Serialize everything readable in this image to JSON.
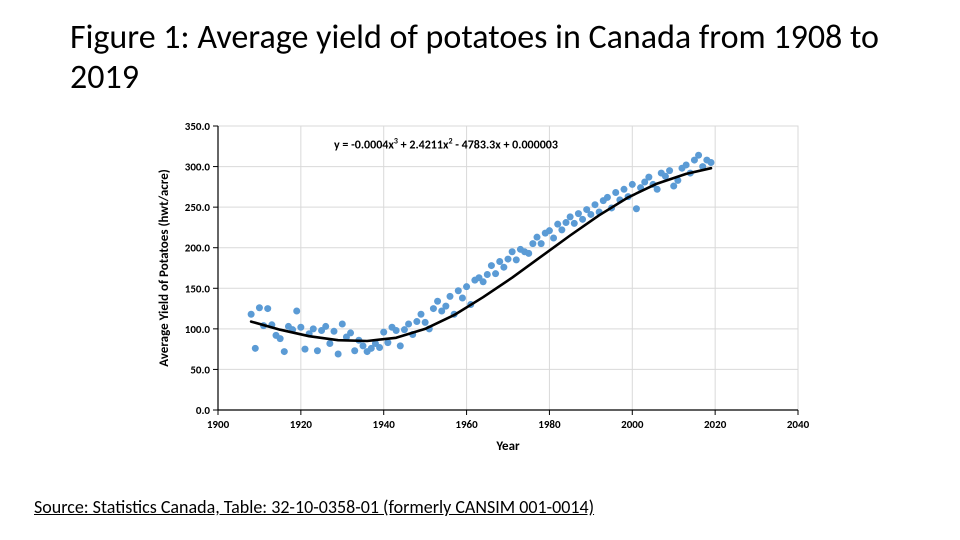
{
  "title": "Figure 1: Average yield of potatoes in Canada from 1908 to 2019",
  "source": "Source: Statistics Canada, Table: 32-10-0358-01 (formerly CANSIM 001-0014)",
  "chart": {
    "type": "scatter",
    "equation_prefix": "y = -0.0004x",
    "equation_mid1": " + 2.4211x",
    "equation_mid2": " - 4783.3x + 0.000003",
    "xlabel": "Year",
    "ylabel": "Average Yield of Potatoes (hwt/acre)",
    "xlim": [
      1900,
      2040
    ],
    "ylim": [
      0,
      350
    ],
    "xticks": [
      1900,
      1920,
      1940,
      1960,
      1980,
      2000,
      2020,
      2040
    ],
    "yticks": [
      0.0,
      50.0,
      100.0,
      150.0,
      200.0,
      250.0,
      300.0,
      350.0
    ],
    "ytick_labels": [
      "0.0",
      "50.0",
      "100.0",
      "150.0",
      "200.0",
      "250.0",
      "300.0",
      "350.0"
    ],
    "background_color": "#ffffff",
    "grid_color": "#d9d9d9",
    "axis_color": "#000000",
    "marker_color": "#5b9bd5",
    "marker_radius": 3.5,
    "trend_color": "#000000",
    "trend_width": 2.6,
    "label_fontsize": 13,
    "tick_fontsize": 11,
    "equation_fontsize": 12,
    "ytick_decimal": 1,
    "trend_coeffs": {
      "a": -0.0004,
      "b": 2.4211,
      "c": -4783.3,
      "d": 3e-06
    },
    "points": [
      {
        "x": 1908,
        "y": 118
      },
      {
        "x": 1909,
        "y": 76
      },
      {
        "x": 1910,
        "y": 126
      },
      {
        "x": 1911,
        "y": 104
      },
      {
        "x": 1912,
        "y": 125
      },
      {
        "x": 1913,
        "y": 105
      },
      {
        "x": 1914,
        "y": 92
      },
      {
        "x": 1915,
        "y": 88
      },
      {
        "x": 1916,
        "y": 72
      },
      {
        "x": 1917,
        "y": 103
      },
      {
        "x": 1918,
        "y": 99
      },
      {
        "x": 1919,
        "y": 122
      },
      {
        "x": 1920,
        "y": 102
      },
      {
        "x": 1921,
        "y": 75
      },
      {
        "x": 1922,
        "y": 94
      },
      {
        "x": 1923,
        "y": 100
      },
      {
        "x": 1924,
        "y": 73
      },
      {
        "x": 1925,
        "y": 98
      },
      {
        "x": 1926,
        "y": 103
      },
      {
        "x": 1927,
        "y": 82
      },
      {
        "x": 1928,
        "y": 97
      },
      {
        "x": 1929,
        "y": 69
      },
      {
        "x": 1930,
        "y": 106
      },
      {
        "x": 1931,
        "y": 90
      },
      {
        "x": 1932,
        "y": 95
      },
      {
        "x": 1933,
        "y": 73
      },
      {
        "x": 1934,
        "y": 86
      },
      {
        "x": 1935,
        "y": 79
      },
      {
        "x": 1936,
        "y": 72
      },
      {
        "x": 1937,
        "y": 76
      },
      {
        "x": 1938,
        "y": 82
      },
      {
        "x": 1939,
        "y": 77
      },
      {
        "x": 1940,
        "y": 96
      },
      {
        "x": 1941,
        "y": 83
      },
      {
        "x": 1942,
        "y": 102
      },
      {
        "x": 1943,
        "y": 98
      },
      {
        "x": 1944,
        "y": 79
      },
      {
        "x": 1945,
        "y": 99
      },
      {
        "x": 1946,
        "y": 106
      },
      {
        "x": 1947,
        "y": 93
      },
      {
        "x": 1948,
        "y": 109
      },
      {
        "x": 1949,
        "y": 118
      },
      {
        "x": 1950,
        "y": 108
      },
      {
        "x": 1951,
        "y": 100
      },
      {
        "x": 1952,
        "y": 125
      },
      {
        "x": 1953,
        "y": 134
      },
      {
        "x": 1954,
        "y": 122
      },
      {
        "x": 1955,
        "y": 128
      },
      {
        "x": 1956,
        "y": 140
      },
      {
        "x": 1957,
        "y": 118
      },
      {
        "x": 1958,
        "y": 147
      },
      {
        "x": 1959,
        "y": 138
      },
      {
        "x": 1960,
        "y": 152
      },
      {
        "x": 1961,
        "y": 130
      },
      {
        "x": 1962,
        "y": 160
      },
      {
        "x": 1963,
        "y": 163
      },
      {
        "x": 1964,
        "y": 158
      },
      {
        "x": 1965,
        "y": 167
      },
      {
        "x": 1966,
        "y": 178
      },
      {
        "x": 1967,
        "y": 168
      },
      {
        "x": 1968,
        "y": 183
      },
      {
        "x": 1969,
        "y": 176
      },
      {
        "x": 1970,
        "y": 186
      },
      {
        "x": 1971,
        "y": 195
      },
      {
        "x": 1972,
        "y": 185
      },
      {
        "x": 1973,
        "y": 198
      },
      {
        "x": 1974,
        "y": 195
      },
      {
        "x": 1975,
        "y": 193
      },
      {
        "x": 1976,
        "y": 205
      },
      {
        "x": 1977,
        "y": 213
      },
      {
        "x": 1978,
        "y": 205
      },
      {
        "x": 1979,
        "y": 218
      },
      {
        "x": 1980,
        "y": 221
      },
      {
        "x": 1981,
        "y": 212
      },
      {
        "x": 1982,
        "y": 229
      },
      {
        "x": 1983,
        "y": 222
      },
      {
        "x": 1984,
        "y": 231
      },
      {
        "x": 1985,
        "y": 238
      },
      {
        "x": 1986,
        "y": 230
      },
      {
        "x": 1987,
        "y": 242
      },
      {
        "x": 1988,
        "y": 235
      },
      {
        "x": 1989,
        "y": 247
      },
      {
        "x": 1990,
        "y": 241
      },
      {
        "x": 1991,
        "y": 253
      },
      {
        "x": 1992,
        "y": 244
      },
      {
        "x": 1993,
        "y": 258
      },
      {
        "x": 1994,
        "y": 262
      },
      {
        "x": 1995,
        "y": 249
      },
      {
        "x": 1996,
        "y": 268
      },
      {
        "x": 1997,
        "y": 259
      },
      {
        "x": 1998,
        "y": 272
      },
      {
        "x": 1999,
        "y": 263
      },
      {
        "x": 2000,
        "y": 278
      },
      {
        "x": 2001,
        "y": 248
      },
      {
        "x": 2002,
        "y": 274
      },
      {
        "x": 2003,
        "y": 281
      },
      {
        "x": 2004,
        "y": 287
      },
      {
        "x": 2005,
        "y": 278
      },
      {
        "x": 2006,
        "y": 272
      },
      {
        "x": 2007,
        "y": 292
      },
      {
        "x": 2008,
        "y": 288
      },
      {
        "x": 2009,
        "y": 295
      },
      {
        "x": 2010,
        "y": 276
      },
      {
        "x": 2011,
        "y": 283
      },
      {
        "x": 2012,
        "y": 298
      },
      {
        "x": 2013,
        "y": 302
      },
      {
        "x": 2014,
        "y": 292
      },
      {
        "x": 2015,
        "y": 308
      },
      {
        "x": 2016,
        "y": 314
      },
      {
        "x": 2017,
        "y": 300
      },
      {
        "x": 2018,
        "y": 308
      },
      {
        "x": 2019,
        "y": 305
      }
    ],
    "trend_samples": [
      {
        "x": 1908,
        "y": 109
      },
      {
        "x": 1915,
        "y": 99
      },
      {
        "x": 1922,
        "y": 91
      },
      {
        "x": 1929,
        "y": 86
      },
      {
        "x": 1936,
        "y": 85
      },
      {
        "x": 1943,
        "y": 89
      },
      {
        "x": 1950,
        "y": 100
      },
      {
        "x": 1957,
        "y": 117
      },
      {
        "x": 1964,
        "y": 139
      },
      {
        "x": 1971,
        "y": 163
      },
      {
        "x": 1978,
        "y": 189
      },
      {
        "x": 1985,
        "y": 215
      },
      {
        "x": 1992,
        "y": 240
      },
      {
        "x": 1999,
        "y": 262
      },
      {
        "x": 2006,
        "y": 279
      },
      {
        "x": 2013,
        "y": 291
      },
      {
        "x": 2019,
        "y": 298
      }
    ]
  }
}
